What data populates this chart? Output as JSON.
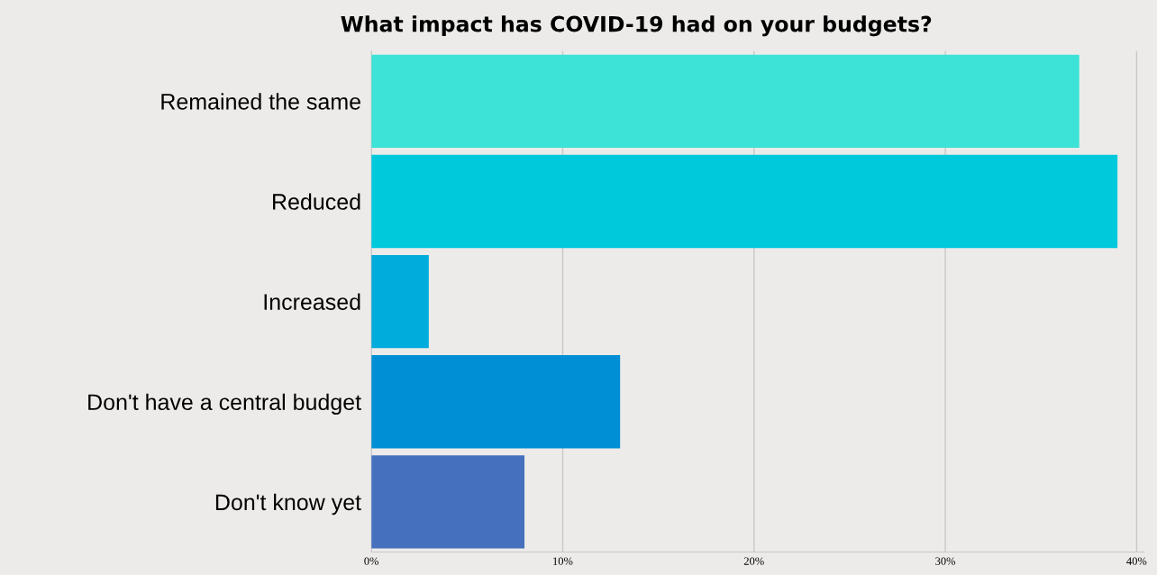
{
  "chart_data": {
    "type": "bar",
    "orientation": "horizontal",
    "title": "What impact has COVID-19 had on your budgets?",
    "categories": [
      "Remained the same",
      "Reduced",
      "Increased",
      "Don't have a central budget",
      "Don't know yet"
    ],
    "values": [
      37,
      39,
      3,
      13,
      8
    ],
    "colors": [
      "#3ce3d6",
      "#00c9dc",
      "#00acdb",
      "#008fd5",
      "#4470be"
    ],
    "xlim": [
      0,
      40.4
    ],
    "xticks": [
      {
        "value": 0,
        "label": "0%"
      },
      {
        "value": 10,
        "label": "10%"
      },
      {
        "value": 20,
        "label": "20%"
      },
      {
        "value": 30,
        "label": "30%"
      },
      {
        "value": 40,
        "label": "40%"
      }
    ],
    "grid": "x"
  }
}
